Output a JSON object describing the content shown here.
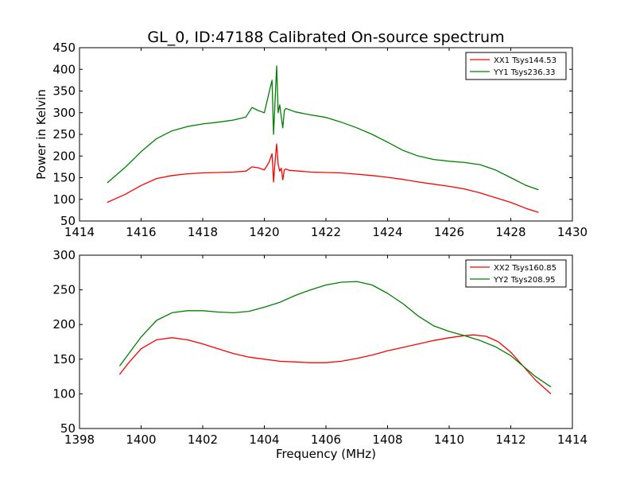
{
  "figure": {
    "title": "GL_0, ID:47188 Calibrated On-source spectrum"
  },
  "chart_data": [
    {
      "type": "line",
      "title": "GL_0, ID:47188 Calibrated On-source spectrum",
      "xlabel": "",
      "ylabel": "Power in Kelvin",
      "xlim": [
        1414,
        1430
      ],
      "ylim": [
        50,
        450
      ],
      "xticks": [
        1414,
        1416,
        1418,
        1420,
        1422,
        1424,
        1426,
        1428,
        1430
      ],
      "yticks": [
        50,
        100,
        150,
        200,
        250,
        300,
        350,
        400,
        450
      ],
      "grid": false,
      "legend_position": "top-right",
      "series": [
        {
          "name": "XX1 Tsys144.53",
          "color": "#ff0000",
          "x": [
            1414.9,
            1415.5,
            1416.0,
            1416.5,
            1417.0,
            1417.5,
            1418.0,
            1418.5,
            1419.0,
            1419.4,
            1419.6,
            1419.8,
            1420.0,
            1420.15,
            1420.25,
            1420.3,
            1420.35,
            1420.4,
            1420.45,
            1420.5,
            1420.55,
            1420.6,
            1420.65,
            1420.7,
            1420.8,
            1421.0,
            1421.5,
            1422.0,
            1422.5,
            1423.0,
            1423.5,
            1424.0,
            1424.5,
            1425.0,
            1425.5,
            1426.0,
            1426.5,
            1427.0,
            1427.5,
            1428.0,
            1428.5,
            1428.9
          ],
          "y": [
            93,
            112,
            132,
            148,
            155,
            159,
            161,
            162,
            163,
            165,
            175,
            173,
            168,
            185,
            205,
            140,
            190,
            228,
            180,
            165,
            172,
            145,
            168,
            170,
            167,
            166,
            163,
            162,
            161,
            158,
            155,
            151,
            146,
            140,
            135,
            130,
            124,
            115,
            104,
            93,
            79,
            70
          ]
        },
        {
          "name": "YY1 Tsys236.33",
          "color": "#008000",
          "x": [
            1414.9,
            1415.5,
            1416.0,
            1416.5,
            1417.0,
            1417.5,
            1418.0,
            1418.5,
            1419.0,
            1419.4,
            1419.6,
            1419.8,
            1420.0,
            1420.15,
            1420.25,
            1420.3,
            1420.35,
            1420.4,
            1420.45,
            1420.5,
            1420.55,
            1420.6,
            1420.65,
            1420.7,
            1420.8,
            1421.0,
            1421.5,
            1422.0,
            1422.5,
            1423.0,
            1423.5,
            1424.0,
            1424.5,
            1425.0,
            1425.5,
            1426.0,
            1426.5,
            1427.0,
            1427.5,
            1428.0,
            1428.5,
            1428.9
          ],
          "y": [
            138,
            175,
            210,
            240,
            258,
            268,
            274,
            278,
            283,
            290,
            312,
            305,
            300,
            345,
            375,
            250,
            330,
            408,
            300,
            318,
            290,
            265,
            305,
            310,
            307,
            302,
            295,
            289,
            278,
            265,
            250,
            232,
            213,
            200,
            192,
            188,
            185,
            180,
            168,
            150,
            132,
            122
          ]
        }
      ]
    },
    {
      "type": "line",
      "title": "",
      "xlabel": "Frequency (MHz)",
      "ylabel": "",
      "xlim": [
        1398,
        1414
      ],
      "ylim": [
        50,
        300
      ],
      "xticks": [
        1398,
        1400,
        1402,
        1404,
        1406,
        1408,
        1410,
        1412,
        1414
      ],
      "yticks": [
        50,
        100,
        150,
        200,
        250,
        300
      ],
      "grid": false,
      "legend_position": "top-right",
      "series": [
        {
          "name": "XX2 Tsys160.85",
          "color": "#ff0000",
          "x": [
            1399.3,
            1399.6,
            1400.0,
            1400.5,
            1401.0,
            1401.5,
            1402.0,
            1402.5,
            1403.0,
            1403.5,
            1404.0,
            1404.5,
            1405.0,
            1405.5,
            1406.0,
            1406.5,
            1407.0,
            1407.5,
            1408.0,
            1408.5,
            1409.0,
            1409.5,
            1410.0,
            1410.5,
            1410.8,
            1411.2,
            1411.6,
            1412.0,
            1412.4,
            1412.8,
            1413.3
          ],
          "y": [
            128,
            145,
            165,
            178,
            181,
            178,
            172,
            165,
            158,
            153,
            150,
            147,
            146,
            145,
            145,
            147,
            151,
            156,
            162,
            167,
            172,
            177,
            181,
            184,
            185,
            183,
            175,
            160,
            140,
            120,
            100
          ]
        },
        {
          "name": "YY2 Tsys208.95",
          "color": "#008000",
          "x": [
            1399.3,
            1399.6,
            1400.0,
            1400.5,
            1401.0,
            1401.5,
            1402.0,
            1402.5,
            1403.0,
            1403.5,
            1404.0,
            1404.5,
            1405.0,
            1405.5,
            1406.0,
            1406.5,
            1407.0,
            1407.5,
            1408.0,
            1408.5,
            1409.0,
            1409.5,
            1410.0,
            1410.5,
            1411.0,
            1411.5,
            1412.0,
            1412.4,
            1412.8,
            1413.3
          ],
          "y": [
            140,
            158,
            182,
            206,
            217,
            220,
            220,
            218,
            217,
            219,
            225,
            232,
            242,
            250,
            257,
            261,
            262,
            257,
            245,
            230,
            212,
            198,
            190,
            184,
            177,
            168,
            155,
            140,
            125,
            110
          ]
        }
      ]
    }
  ]
}
